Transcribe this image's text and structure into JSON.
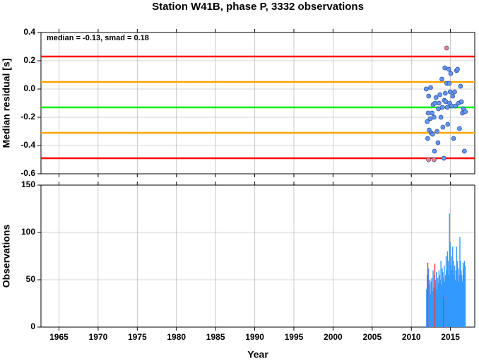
{
  "chart_data": [
    {
      "type": "scatter",
      "title": "Station W41B, phase P, 3332 observations",
      "annotation": "median = -0.13, smad = 0.18",
      "ylabel": "Median residual [s]",
      "xlim": [
        1962.7,
        2018.1
      ],
      "xticks": [
        1965,
        1970,
        1975,
        1980,
        1985,
        1990,
        1995,
        2000,
        2005,
        2010,
        2015
      ],
      "ylim": [
        -0.6,
        0.4
      ],
      "yticks": [
        -0.6,
        -0.4,
        -0.2,
        {
          "value": 0,
          "label": "0.0"
        },
        0.2,
        0.4
      ],
      "grid": true,
      "hlines": [
        {
          "value": 0.23,
          "color": "#ff0000"
        },
        {
          "value": 0.05,
          "color": "#ffa500"
        },
        {
          "value": -0.13,
          "color": "#00ee00"
        },
        {
          "value": -0.31,
          "color": "#ffa500"
        },
        {
          "value": -0.49,
          "color": "#ff0000"
        }
      ],
      "series": [
        {
          "color": "#6495ed",
          "x": [
            2011.9,
            2012.03,
            2012.09,
            2012.15,
            2012.21,
            2012.28,
            2012.4,
            2012.46,
            2012.53,
            2012.65,
            2012.71,
            2012.78,
            2012.9,
            2012.96,
            2013.03,
            2013.15,
            2013.28,
            2013.4,
            2013.46,
            2013.53,
            2013.65,
            2013.78,
            2013.9,
            2013.96,
            2014.03,
            2014.15,
            2014.21,
            2014.28,
            2014.34,
            2014.4,
            2014.53,
            2014.59,
            2014.65,
            2014.78,
            2014.84,
            2014.9,
            2014.96,
            2015.03,
            2015.15,
            2015.28,
            2015.4,
            2015.53,
            2015.65,
            2015.78,
            2015.9,
            2016.03,
            2016.15,
            2016.28,
            2016.4,
            2016.53,
            2016.65,
            2016.78,
            2016.9
          ],
          "values": [
            0.0,
            -0.23,
            -0.35,
            -0.17,
            -0.05,
            -0.29,
            -0.21,
            0.01,
            -0.31,
            -0.17,
            -0.32,
            -0.11,
            -0.2,
            -0.44,
            -0.1,
            -0.06,
            -0.3,
            -0.38,
            -0.14,
            -0.1,
            -0.04,
            -0.2,
            0.07,
            -0.13,
            -0.27,
            -0.49,
            -0.08,
            0.15,
            -0.03,
            -0.09,
            0.04,
            -0.13,
            -0.25,
            0.14,
            0.04,
            -0.1,
            -0.02,
            0.11,
            -0.12,
            -0.05,
            -0.35,
            -0.02,
            -0.12,
            0.13,
            0.14,
            -0.1,
            -0.28,
            0.02,
            -0.09,
            -0.17,
            -0.14,
            -0.44,
            -0.16
          ]
        },
        {
          "color": "#ff7f7f",
          "x": [
            2014.5,
            2012.2,
            2012.9
          ],
          "values": [
            0.29,
            -0.5,
            -0.5
          ]
        }
      ]
    },
    {
      "type": "bar",
      "ylabel": "Observations",
      "xlabel": "Year",
      "xlim": [
        1962.7,
        2018.1
      ],
      "xticks": [
        1965,
        1970,
        1975,
        1980,
        1985,
        1990,
        1995,
        2000,
        2005,
        2010,
        2015
      ],
      "ylim": [
        0,
        150
      ],
      "yticks": [
        0,
        50,
        100,
        150
      ],
      "grid": true,
      "series": [
        {
          "color": "#3399ff",
          "x": [
            2011.95,
            2012.03,
            2012.12,
            2012.2,
            2012.28,
            2012.37,
            2012.45,
            2012.53,
            2012.62,
            2012.7,
            2012.78,
            2012.87,
            2012.95,
            2013.03,
            2013.12,
            2013.2,
            2013.28,
            2013.37,
            2013.45,
            2013.53,
            2013.62,
            2013.7,
            2013.78,
            2013.87,
            2013.95,
            2014.03,
            2014.12,
            2014.2,
            2014.28,
            2014.37,
            2014.45,
            2014.53,
            2014.62,
            2014.7,
            2014.78,
            2014.87,
            2014.95,
            2015.03,
            2015.12,
            2015.2,
            2015.28,
            2015.37,
            2015.45,
            2015.53,
            2015.62,
            2015.7,
            2015.78,
            2015.87,
            2015.95,
            2016.03,
            2016.12,
            2016.2,
            2016.28,
            2016.37,
            2016.45,
            2016.53,
            2016.62,
            2016.7,
            2016.78,
            2016.87
          ],
          "values": [
            40,
            55,
            30,
            62,
            45,
            50,
            35,
            48,
            52,
            38,
            60,
            42,
            55,
            45,
            50,
            58,
            40,
            52,
            47,
            60,
            55,
            50,
            70,
            45,
            62,
            58,
            52,
            65,
            48,
            55,
            75,
            60,
            80,
            70,
            55,
            120,
            90,
            65,
            75,
            60,
            85,
            70,
            55,
            65,
            50,
            60,
            85,
            70,
            48,
            62,
            55,
            95,
            70,
            60,
            55,
            48,
            68,
            62,
            70,
            65
          ]
        },
        {
          "color": "#ff3333",
          "x": [
            2012.1,
            2013.0,
            2014.1
          ],
          "values": [
            68,
            67,
            32
          ]
        }
      ]
    }
  ]
}
